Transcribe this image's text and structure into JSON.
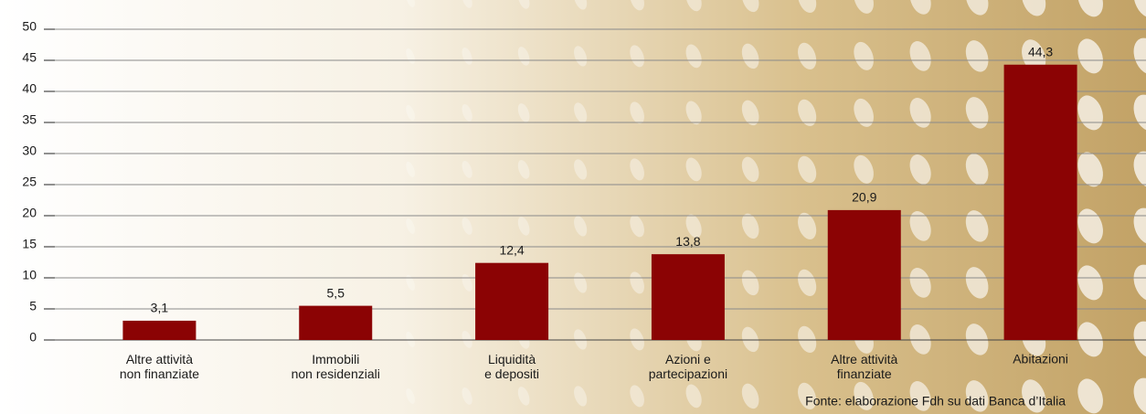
{
  "chart_data": {
    "type": "bar",
    "categories": [
      "Altre attività\nnon finanziate",
      "Immobili\nnon residenziali",
      "Liquidità\ne depositi",
      "Azioni e\npartecipazioni",
      "Altre attività\nfinanziate",
      "Abitazioni"
    ],
    "values": [
      3.1,
      5.5,
      12.4,
      13.8,
      20.9,
      44.3
    ],
    "value_labels": [
      "3,1",
      "5,5",
      "12,4",
      "13,8",
      "20,9",
      "44,3"
    ],
    "color": "#8b0304",
    "ylim": [
      0,
      50
    ],
    "yticks": [
      0,
      5,
      10,
      15,
      20,
      25,
      30,
      35,
      40,
      45,
      50
    ],
    "grid": true,
    "source": "Fonte: elaborazione Fdh su dati Banca d’Italia"
  }
}
